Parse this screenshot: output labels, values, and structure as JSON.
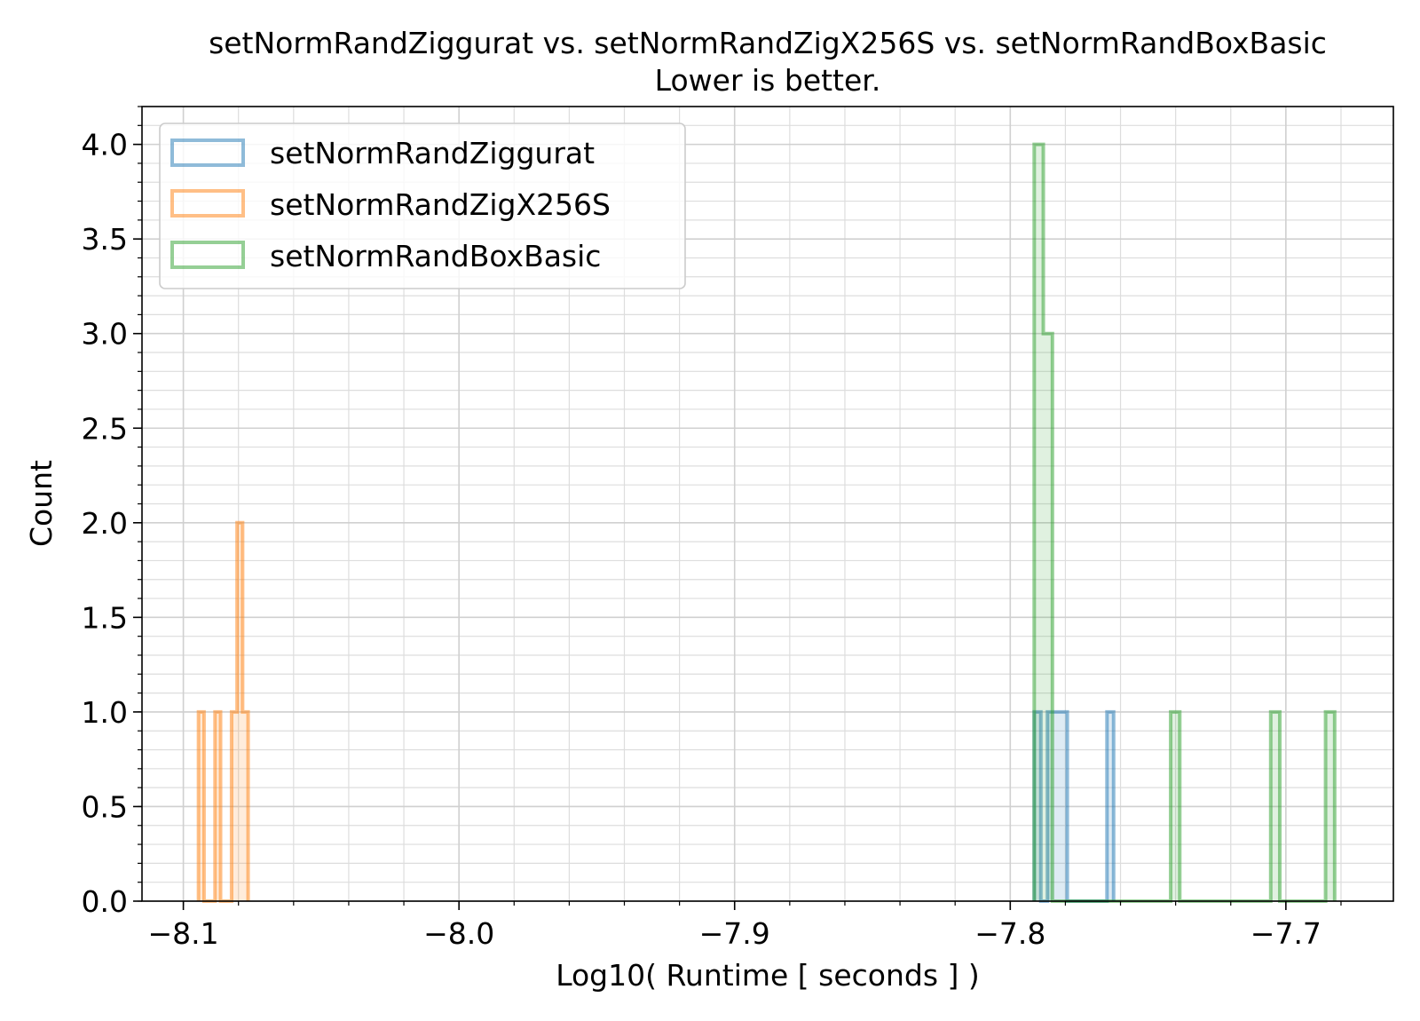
{
  "chart_data": {
    "type": "histogram",
    "title": "setNormRandZiggurat vs. setNormRandZigX256S vs. setNormRandBoxBasic",
    "subtitle": "Lower is better.",
    "xlabel": "Log10( Runtime [ seconds ] )",
    "ylabel": "Count",
    "xlim": [
      -8.115,
      -7.661
    ],
    "ylim": [
      0,
      4.2
    ],
    "x_ticks": [
      {
        "value": -8.1,
        "label": "−8.1"
      },
      {
        "value": -8.0,
        "label": "−8.0"
      },
      {
        "value": -7.9,
        "label": "−7.9"
      },
      {
        "value": -7.8,
        "label": "−7.8"
      },
      {
        "value": -7.7,
        "label": "−7.7"
      }
    ],
    "y_ticks": [
      {
        "value": 0.0,
        "label": "0.0"
      },
      {
        "value": 0.5,
        "label": "0.5"
      },
      {
        "value": 1.0,
        "label": "1.0"
      },
      {
        "value": 1.5,
        "label": "1.5"
      },
      {
        "value": 2.0,
        "label": "2.0"
      },
      {
        "value": 2.5,
        "label": "2.5"
      },
      {
        "value": 3.0,
        "label": "3.0"
      },
      {
        "value": 3.5,
        "label": "3.5"
      },
      {
        "value": 4.0,
        "label": "4.0"
      }
    ],
    "grid": true,
    "minor_grid": true,
    "legend_position": "upper-left",
    "series": [
      {
        "name": "setNormRandZiggurat",
        "color": "#1f77b4",
        "bins": [
          {
            "x0": -7.7913,
            "x1": -7.7889,
            "count": 1
          },
          {
            "x0": -7.7889,
            "x1": -7.7865,
            "count": 0
          },
          {
            "x0": -7.7865,
            "x1": -7.7841,
            "count": 1
          },
          {
            "x0": -7.7841,
            "x1": -7.7817,
            "count": 1
          },
          {
            "x0": -7.7817,
            "x1": -7.7793,
            "count": 1
          },
          {
            "x0": -7.7793,
            "x1": -7.7769,
            "count": 0
          },
          {
            "x0": -7.7769,
            "x1": -7.7745,
            "count": 0
          },
          {
            "x0": -7.7745,
            "x1": -7.7721,
            "count": 0
          },
          {
            "x0": -7.7721,
            "x1": -7.7697,
            "count": 0
          },
          {
            "x0": -7.7697,
            "x1": -7.7673,
            "count": 0
          },
          {
            "x0": -7.7673,
            "x1": -7.7649,
            "count": 0
          },
          {
            "x0": -7.7649,
            "x1": -7.7625,
            "count": 1
          }
        ]
      },
      {
        "name": "setNormRandZigX256S",
        "color": "#ff7f0e",
        "bins": [
          {
            "x0": -8.0945,
            "x1": -8.0925,
            "count": 1
          },
          {
            "x0": -8.0925,
            "x1": -8.0905,
            "count": 0
          },
          {
            "x0": -8.0905,
            "x1": -8.0885,
            "count": 0
          },
          {
            "x0": -8.0885,
            "x1": -8.0865,
            "count": 1
          },
          {
            "x0": -8.0865,
            "x1": -8.0845,
            "count": 0
          },
          {
            "x0": -8.0845,
            "x1": -8.0825,
            "count": 0
          },
          {
            "x0": -8.0825,
            "x1": -8.0805,
            "count": 1
          },
          {
            "x0": -8.0805,
            "x1": -8.0785,
            "count": 2
          },
          {
            "x0": -8.0785,
            "x1": -8.0765,
            "count": 1
          }
        ]
      },
      {
        "name": "setNormRandBoxBasic",
        "color": "#2ca02c",
        "bins": [
          {
            "x0": -7.7913,
            "x1": -7.788,
            "count": 4
          },
          {
            "x0": -7.788,
            "x1": -7.7847,
            "count": 3
          },
          {
            "x0": -7.7847,
            "x1": -7.7418,
            "count": 0
          },
          {
            "x0": -7.7418,
            "x1": -7.7385,
            "count": 1
          },
          {
            "x0": -7.7385,
            "x1": -7.7055,
            "count": 0
          },
          {
            "x0": -7.7055,
            "x1": -7.7022,
            "count": 1
          },
          {
            "x0": -7.7022,
            "x1": -7.6856,
            "count": 0
          },
          {
            "x0": -7.6856,
            "x1": -7.6823,
            "count": 1
          }
        ]
      }
    ]
  }
}
